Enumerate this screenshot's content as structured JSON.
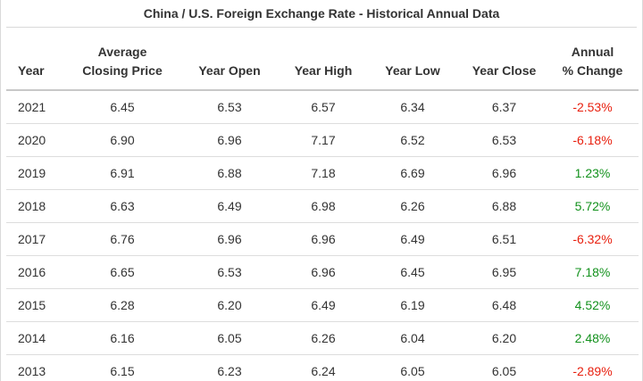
{
  "title": "China / U.S. Foreign Exchange Rate - Historical Annual Data",
  "headers": {
    "year": "Year",
    "avg_line1": "Average",
    "avg_line2": "Closing Price",
    "open": "Year Open",
    "high": "Year High",
    "low": "Year Low",
    "close": "Year Close",
    "chg_line1": "Annual",
    "chg_line2": "% Change"
  },
  "colors": {
    "negative": "#e8200f",
    "positive": "#12911c"
  },
  "rows": [
    {
      "year": "2021",
      "avg": "6.45",
      "open": "6.53",
      "high": "6.57",
      "low": "6.34",
      "close": "6.37",
      "change": "-2.53%",
      "dir": "neg"
    },
    {
      "year": "2020",
      "avg": "6.90",
      "open": "6.96",
      "high": "7.17",
      "low": "6.52",
      "close": "6.53",
      "change": "-6.18%",
      "dir": "neg"
    },
    {
      "year": "2019",
      "avg": "6.91",
      "open": "6.88",
      "high": "7.18",
      "low": "6.69",
      "close": "6.96",
      "change": "1.23%",
      "dir": "pos"
    },
    {
      "year": "2018",
      "avg": "6.63",
      "open": "6.49",
      "high": "6.98",
      "low": "6.26",
      "close": "6.88",
      "change": "5.72%",
      "dir": "pos"
    },
    {
      "year": "2017",
      "avg": "6.76",
      "open": "6.96",
      "high": "6.96",
      "low": "6.49",
      "close": "6.51",
      "change": "-6.32%",
      "dir": "neg"
    },
    {
      "year": "2016",
      "avg": "6.65",
      "open": "6.53",
      "high": "6.96",
      "low": "6.45",
      "close": "6.95",
      "change": "7.18%",
      "dir": "pos"
    },
    {
      "year": "2015",
      "avg": "6.28",
      "open": "6.20",
      "high": "6.49",
      "low": "6.19",
      "close": "6.48",
      "change": "4.52%",
      "dir": "pos"
    },
    {
      "year": "2014",
      "avg": "6.16",
      "open": "6.05",
      "high": "6.26",
      "low": "6.04",
      "close": "6.20",
      "change": "2.48%",
      "dir": "pos"
    },
    {
      "year": "2013",
      "avg": "6.15",
      "open": "6.23",
      "high": "6.24",
      "low": "6.05",
      "close": "6.05",
      "change": "-2.89%",
      "dir": "neg"
    }
  ]
}
